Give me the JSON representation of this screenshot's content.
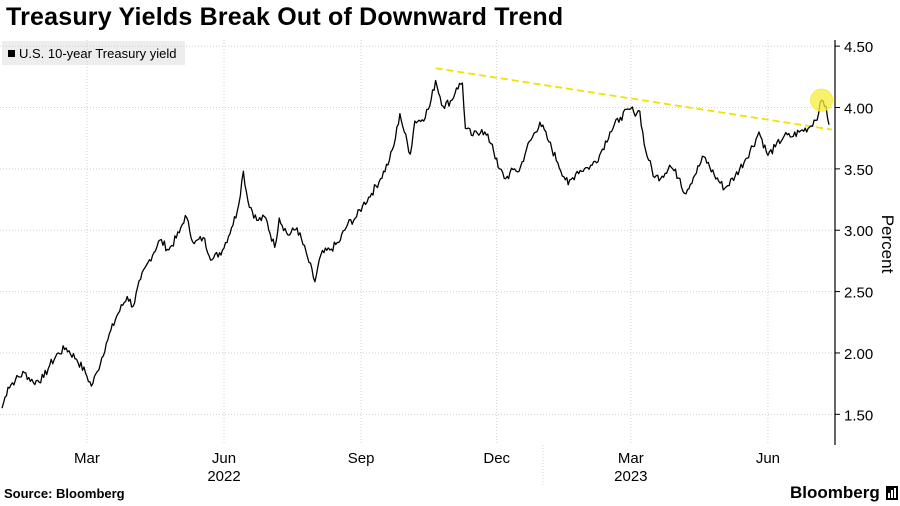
{
  "chart_data": {
    "type": "line",
    "title": "Treasury Yields Break Out of Downward Trend",
    "ylabel": "Percent",
    "ylim": [
      1.25,
      4.55
    ],
    "yticks": [
      "4.50",
      "4.00",
      "3.50",
      "3.00",
      "2.50",
      "2.00",
      "1.50"
    ],
    "ytick_values": [
      4.5,
      4.0,
      3.5,
      3.0,
      2.5,
      2.0,
      1.5
    ],
    "xlim": [
      "2022-01-03",
      "2023-07-14"
    ],
    "month_ticks": [
      {
        "label": "Mar",
        "date": "2022-03-01"
      },
      {
        "label": "Jun",
        "date": "2022-06-01"
      },
      {
        "label": "Sep",
        "date": "2022-09-01"
      },
      {
        "label": "Dec",
        "date": "2022-12-01"
      },
      {
        "label": "Mar",
        "date": "2023-03-01"
      },
      {
        "label": "Jun",
        "date": "2023-06-01"
      }
    ],
    "year_labels": [
      {
        "label": "2022",
        "date": "2022-06-01"
      },
      {
        "label": "2023",
        "date": "2023-03-01"
      }
    ],
    "year_divider": "2023-01-01",
    "series": [
      {
        "name": "U.S. 10-year Treasury yield",
        "color": "#000000",
        "points": [
          [
            "2022-01-03",
            1.55
          ],
          [
            "2022-01-07",
            1.72
          ],
          [
            "2022-01-12",
            1.78
          ],
          [
            "2022-01-18",
            1.84
          ],
          [
            "2022-01-24",
            1.76
          ],
          [
            "2022-01-31",
            1.8
          ],
          [
            "2022-02-04",
            1.9
          ],
          [
            "2022-02-10",
            2.0
          ],
          [
            "2022-02-15",
            2.04
          ],
          [
            "2022-02-22",
            1.95
          ],
          [
            "2022-02-28",
            1.84
          ],
          [
            "2022-03-04",
            1.73
          ],
          [
            "2022-03-08",
            1.85
          ],
          [
            "2022-03-14",
            2.08
          ],
          [
            "2022-03-21",
            2.3
          ],
          [
            "2022-03-28",
            2.46
          ],
          [
            "2022-04-01",
            2.38
          ],
          [
            "2022-04-06",
            2.6
          ],
          [
            "2022-04-12",
            2.76
          ],
          [
            "2022-04-19",
            2.92
          ],
          [
            "2022-04-25",
            2.84
          ],
          [
            "2022-05-02",
            2.98
          ],
          [
            "2022-05-06",
            3.12
          ],
          [
            "2022-05-12",
            2.89
          ],
          [
            "2022-05-18",
            2.94
          ],
          [
            "2022-05-24",
            2.76
          ],
          [
            "2022-05-31",
            2.84
          ],
          [
            "2022-06-06",
            3.02
          ],
          [
            "2022-06-10",
            3.16
          ],
          [
            "2022-06-14",
            3.48
          ],
          [
            "2022-06-17",
            3.24
          ],
          [
            "2022-06-23",
            3.08
          ],
          [
            "2022-06-29",
            3.1
          ],
          [
            "2022-07-05",
            2.86
          ],
          [
            "2022-07-08",
            3.1
          ],
          [
            "2022-07-14",
            2.96
          ],
          [
            "2022-07-20",
            3.02
          ],
          [
            "2022-07-27",
            2.78
          ],
          [
            "2022-08-01",
            2.58
          ],
          [
            "2022-08-05",
            2.8
          ],
          [
            "2022-08-11",
            2.84
          ],
          [
            "2022-08-17",
            2.9
          ],
          [
            "2022-08-23",
            3.05
          ],
          [
            "2022-08-29",
            3.11
          ],
          [
            "2022-09-02",
            3.2
          ],
          [
            "2022-09-08",
            3.3
          ],
          [
            "2022-09-14",
            3.42
          ],
          [
            "2022-09-20",
            3.57
          ],
          [
            "2022-09-23",
            3.69
          ],
          [
            "2022-09-27",
            3.95
          ],
          [
            "2022-09-30",
            3.8
          ],
          [
            "2022-10-04",
            3.62
          ],
          [
            "2022-10-07",
            3.89
          ],
          [
            "2022-10-12",
            3.9
          ],
          [
            "2022-10-17",
            4.01
          ],
          [
            "2022-10-21",
            4.22
          ],
          [
            "2022-10-26",
            4.01
          ],
          [
            "2022-11-01",
            4.06
          ],
          [
            "2022-11-04",
            4.16
          ],
          [
            "2022-11-08",
            4.2
          ],
          [
            "2022-11-10",
            3.83
          ],
          [
            "2022-11-15",
            3.77
          ],
          [
            "2022-11-21",
            3.82
          ],
          [
            "2022-11-28",
            3.7
          ],
          [
            "2022-12-02",
            3.51
          ],
          [
            "2022-12-07",
            3.42
          ],
          [
            "2022-12-13",
            3.5
          ],
          [
            "2022-12-16",
            3.48
          ],
          [
            "2022-12-21",
            3.66
          ],
          [
            "2022-12-30",
            3.88
          ],
          [
            "2023-01-05",
            3.72
          ],
          [
            "2023-01-11",
            3.55
          ],
          [
            "2023-01-18",
            3.37
          ],
          [
            "2023-01-24",
            3.48
          ],
          [
            "2023-01-31",
            3.51
          ],
          [
            "2023-02-03",
            3.53
          ],
          [
            "2023-02-08",
            3.61
          ],
          [
            "2023-02-15",
            3.8
          ],
          [
            "2023-02-22",
            3.92
          ],
          [
            "2023-03-01",
            3.99
          ],
          [
            "2023-03-03",
            3.96
          ],
          [
            "2023-03-07",
            3.97
          ],
          [
            "2023-03-10",
            3.7
          ],
          [
            "2023-03-13",
            3.57
          ],
          [
            "2023-03-17",
            3.43
          ],
          [
            "2023-03-22",
            3.44
          ],
          [
            "2023-03-27",
            3.53
          ],
          [
            "2023-04-03",
            3.42
          ],
          [
            "2023-04-06",
            3.3
          ],
          [
            "2023-04-12",
            3.43
          ],
          [
            "2023-04-19",
            3.6
          ],
          [
            "2023-04-26",
            3.45
          ],
          [
            "2023-05-03",
            3.34
          ],
          [
            "2023-05-10",
            3.44
          ],
          [
            "2023-05-17",
            3.58
          ],
          [
            "2023-05-24",
            3.74
          ],
          [
            "2023-05-26",
            3.8
          ],
          [
            "2023-06-01",
            3.61
          ],
          [
            "2023-06-06",
            3.68
          ],
          [
            "2023-06-12",
            3.77
          ],
          [
            "2023-06-16",
            3.76
          ],
          [
            "2023-06-22",
            3.8
          ],
          [
            "2023-06-29",
            3.84
          ],
          [
            "2023-07-05",
            3.95
          ],
          [
            "2023-07-07",
            4.06
          ],
          [
            "2023-07-10",
            4.01
          ],
          [
            "2023-07-12",
            3.86
          ]
        ]
      }
    ],
    "trend_line": {
      "color": "#f2e200",
      "points": [
        [
          "2022-10-21",
          4.32
        ],
        [
          "2023-07-14",
          3.82
        ]
      ]
    },
    "highlight": {
      "color": "#f5ee3a",
      "point": [
        "2023-07-07",
        4.06
      ]
    },
    "grid": true
  },
  "footer": {
    "source": "Source: Bloomberg",
    "brand": "Bloomberg"
  },
  "icons": {
    "brand_icon": "bar-chart-icon"
  }
}
